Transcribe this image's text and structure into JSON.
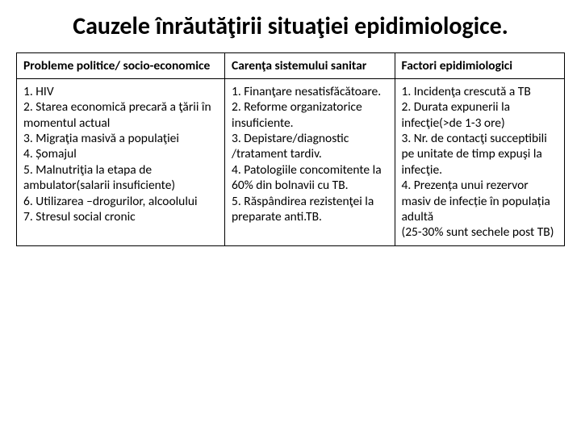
{
  "title": "Cauzele înrăutăţirii situaţiei epidimiologice.",
  "table": {
    "headers": [
      "Probleme politice/ socio-economice",
      "Carenţa sistemului sanitar",
      "Factori  epidimiologici"
    ],
    "cells": [
      "1. HIV\n2. Starea economică precară a ţării în momentul actual\n3. Migraţia masivă a populaţiei\n4. Șomajul\n5. Malnutriţia la etapa de ambulator(salarii insuficiente)\n6. Utilizarea –drogurilor, alcoolului\n7. Stresul social cronic",
      "1. Finanţare nesatisfăcătoare.\n2. Reforme organizatorice insuficiente.\n3. Depistare/diagnostic /tratament tardiv.\n4. Patologiile concomitente la 60% din bolnavii cu TB.\n5. Răspândirea rezistenţei la preparate anti.TB.",
      "1. Incidenţa crescută a TB\n2. Durata expunerii la infecţie(>de 1-3 ore)\n3. Nr. de contacţi succeptibili pe unitate de timp expuşi la infecţie.\n4. Prezența unui rezervor masiv de infecție în populația adultă\n(25-30% sunt sechele post TB)"
    ]
  },
  "style": {
    "background_color": "#ffffff",
    "text_color": "#000000",
    "border_color": "#000000",
    "title_fontsize": 30,
    "cell_fontsize": 15.5,
    "col_widths_pct": [
      38,
      31,
      31
    ]
  }
}
